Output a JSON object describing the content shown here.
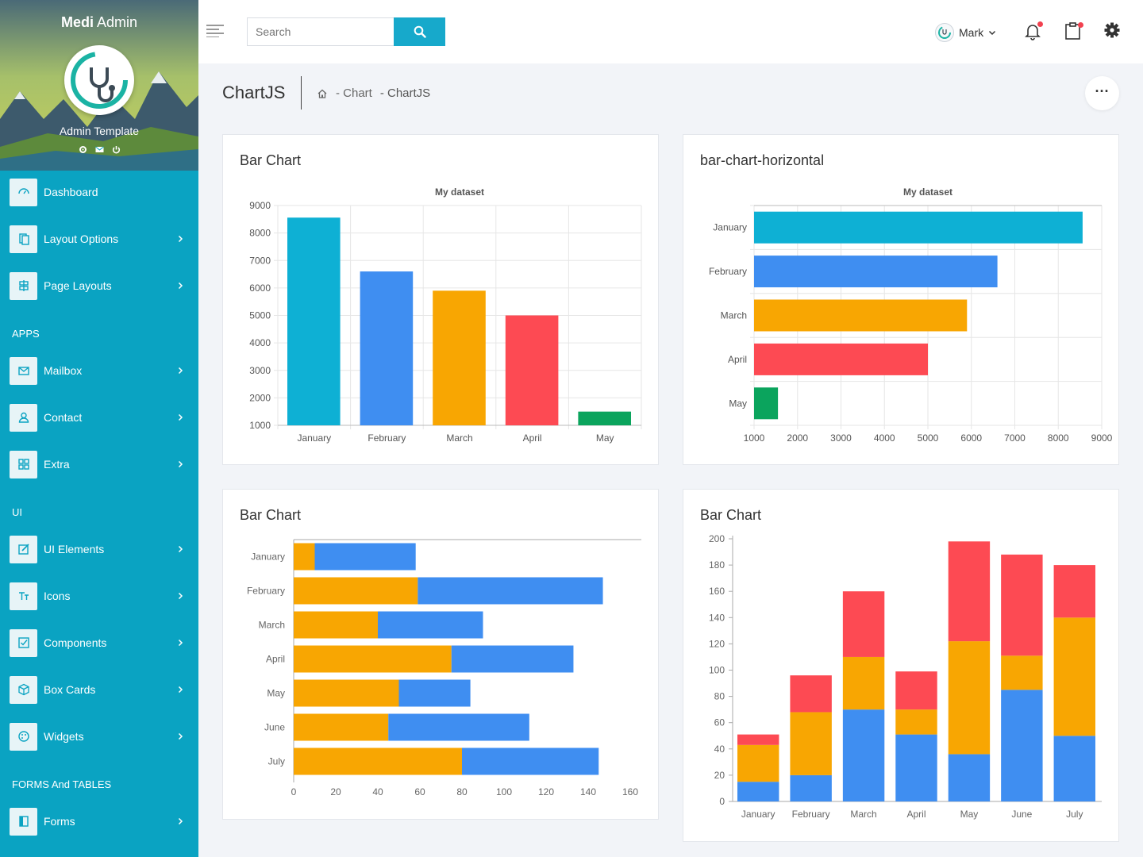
{
  "sidebar": {
    "brand_bold": "Medi",
    "brand_rest": " Admin",
    "subtitle": "Admin Template",
    "items": [
      {
        "label": "Dashboard",
        "icon": "dashboard-icon",
        "has_arrow": false
      },
      {
        "label": "Layout Options",
        "icon": "layout-icon",
        "has_arrow": true
      },
      {
        "label": "Page Layouts",
        "icon": "page-layouts-icon",
        "has_arrow": true
      },
      {
        "label": "Mailbox",
        "icon": "mail-icon",
        "has_arrow": true
      },
      {
        "label": "Contact",
        "icon": "user-icon",
        "has_arrow": true
      },
      {
        "label": "Extra",
        "icon": "grid-icon",
        "has_arrow": true
      },
      {
        "label": "UI Elements",
        "icon": "edit-icon",
        "has_arrow": true
      },
      {
        "label": "Icons",
        "icon": "text-icon",
        "has_arrow": true
      },
      {
        "label": "Components",
        "icon": "checkbox-icon",
        "has_arrow": true
      },
      {
        "label": "Box Cards",
        "icon": "box-icon",
        "has_arrow": true
      },
      {
        "label": "Widgets",
        "icon": "palette-icon",
        "has_arrow": true
      },
      {
        "label": "Forms",
        "icon": "forms-icon",
        "has_arrow": true
      }
    ],
    "sections": [
      "APPS",
      "UI",
      "FORMS And TABLES"
    ]
  },
  "topbar": {
    "search_placeholder": "Search",
    "user_name": "Mark"
  },
  "page": {
    "title": "ChartJS",
    "breadcrumb": [
      "- Chart",
      "- ChartJS"
    ]
  },
  "colors": {
    "teal": "#0eb0d4",
    "blue": "#3f8ef1",
    "orange": "#f8a602",
    "red": "#fd4a53",
    "green": "#0ba45d"
  },
  "cards": {
    "c1_title": "Bar Chart",
    "c2_title": "bar-chart-horizontal",
    "c3_title": "Bar Chart",
    "c4_title": "Bar Chart"
  },
  "chart_data": [
    {
      "type": "bar",
      "title": "My dataset",
      "categories": [
        "January",
        "February",
        "March",
        "April",
        "May"
      ],
      "values": [
        8560,
        6600,
        5900,
        5000,
        1500
      ],
      "colors": [
        "#0eb0d4",
        "#3f8ef1",
        "#f8a602",
        "#fd4a53",
        "#0ba45d"
      ],
      "ylim": [
        1000,
        9000
      ],
      "yticks": [
        9000,
        8000,
        7000,
        6000,
        5000,
        4000,
        3000,
        2000,
        1000
      ],
      "grid": true
    },
    {
      "type": "bar",
      "orientation": "horizontal",
      "title": "My dataset",
      "categories": [
        "January",
        "February",
        "March",
        "April",
        "May"
      ],
      "values": [
        8560,
        6600,
        5900,
        5000,
        1550
      ],
      "colors": [
        "#0eb0d4",
        "#3f8ef1",
        "#f8a602",
        "#fd4a53",
        "#0ba45d"
      ],
      "xlim": [
        1000,
        9000
      ],
      "xticks": [
        1000,
        2000,
        3000,
        4000,
        5000,
        6000,
        7000,
        8000,
        9000
      ],
      "grid": true
    },
    {
      "type": "bar",
      "orientation": "horizontal",
      "stacked": true,
      "categories": [
        "January",
        "February",
        "March",
        "April",
        "May",
        "June",
        "July"
      ],
      "series": [
        {
          "values": [
            10,
            59,
            40,
            75,
            50,
            45,
            80
          ],
          "color": "#f8a602"
        },
        {
          "values": [
            48,
            88,
            50,
            58,
            34,
            67,
            65
          ],
          "color": "#3f8ef1"
        }
      ],
      "xlim": [
        0,
        160
      ],
      "xticks": [
        0,
        20,
        40,
        60,
        80,
        100,
        120,
        140,
        160
      ],
      "grid": false
    },
    {
      "type": "bar",
      "stacked": true,
      "categories": [
        "January",
        "February",
        "March",
        "April",
        "May",
        "June",
        "July"
      ],
      "series": [
        {
          "values": [
            15,
            20,
            70,
            51,
            36,
            85,
            50
          ],
          "color": "#3f8ef1"
        },
        {
          "values": [
            28,
            48,
            40,
            19,
            86,
            26,
            90
          ],
          "color": "#f8a602"
        },
        {
          "values": [
            8,
            28,
            50,
            29,
            76,
            77,
            40
          ],
          "color": "#fd4a53"
        }
      ],
      "ylim": [
        0,
        200
      ],
      "yticks": [
        200,
        180,
        160,
        140,
        120,
        100,
        80,
        60,
        40,
        20,
        0
      ],
      "grid": false
    }
  ]
}
